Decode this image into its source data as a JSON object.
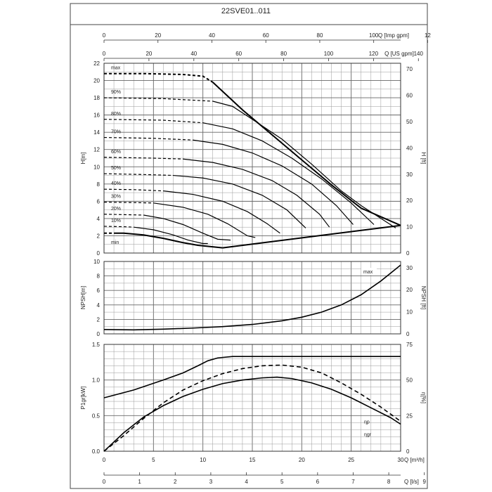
{
  "title": "22SVE01..011",
  "colors": {
    "grid": "#9a9a9a",
    "curve": "#000000",
    "frame": "#444444"
  },
  "chart_data": [
    {
      "id": "head",
      "type": "line",
      "xlabel": "",
      "ylabel": "H[m]",
      "ylabel_right": "H [ft]",
      "top_axis_1": {
        "label": "Q [Imp gpm]",
        "ticks": [
          "0",
          "20",
          "40",
          "60",
          "80",
          "100",
          "12"
        ]
      },
      "top_axis_2": {
        "label": "Q [US gpm]",
        "ticks": [
          "0",
          "20",
          "40",
          "60",
          "80",
          "100",
          "120",
          "140"
        ]
      },
      "xlim": [
        0,
        30
      ],
      "ylim": [
        0,
        22
      ],
      "y_ticks": [
        "0",
        "2",
        "4",
        "6",
        "8",
        "10",
        "12",
        "14",
        "16",
        "18",
        "20",
        "22"
      ],
      "y_right_ticks": [
        "0",
        "10",
        "20",
        "30",
        "40",
        "50",
        "60",
        "70"
      ],
      "grid": true,
      "speed_labels": [
        "max",
        "90%",
        "80%",
        "70%",
        "60%",
        "50%",
        "40%",
        "30%",
        "20%",
        "10%",
        "min"
      ],
      "series": [
        {
          "name": "max",
          "dashed_to": 11,
          "points": [
            [
              0,
              20.8
            ],
            [
              4,
              20.8
            ],
            [
              8,
              20.7
            ],
            [
              10,
              20.5
            ],
            [
              11,
              19.8
            ],
            [
              12.5,
              18.2
            ],
            [
              14,
              16.6
            ],
            [
              17,
              13.7
            ],
            [
              20,
              10.8
            ],
            [
              23,
              7.9
            ],
            [
              26,
              5.2
            ],
            [
              30,
              3.2
            ]
          ]
        },
        {
          "name": "90%",
          "dashed_to": 11,
          "points": [
            [
              0,
              18
            ],
            [
              6,
              17.9
            ],
            [
              11,
              17.6
            ],
            [
              13,
              17
            ],
            [
              15,
              15.5
            ],
            [
              18,
              13.2
            ],
            [
              21,
              10.3
            ],
            [
              24,
              7.2
            ],
            [
              26,
              5.5
            ],
            [
              29.5,
              2.9
            ]
          ]
        },
        {
          "name": "80%",
          "dashed_to": 10,
          "points": [
            [
              0,
              15.5
            ],
            [
              6,
              15.4
            ],
            [
              10,
              15.1
            ],
            [
              13,
              14.4
            ],
            [
              16,
              13
            ],
            [
              19,
              11
            ],
            [
              22,
              8.6
            ],
            [
              25,
              5.8
            ],
            [
              27.3,
              3.3
            ]
          ]
        },
        {
          "name": "70%",
          "dashed_to": 9,
          "points": [
            [
              0,
              13.4
            ],
            [
              5,
              13.3
            ],
            [
              9,
              13.1
            ],
            [
              12,
              12.6
            ],
            [
              15,
              11.6
            ],
            [
              18,
              10.1
            ],
            [
              21,
              8
            ],
            [
              23.5,
              5.5
            ],
            [
              25.2,
              3.3
            ]
          ]
        },
        {
          "name": "60%",
          "dashed_to": 8,
          "points": [
            [
              0,
              11.1
            ],
            [
              5,
              11
            ],
            [
              8,
              10.9
            ],
            [
              11,
              10.5
            ],
            [
              14,
              9.7
            ],
            [
              17,
              8.4
            ],
            [
              19.5,
              6.7
            ],
            [
              21.8,
              4.5
            ],
            [
              22.8,
              3
            ]
          ]
        },
        {
          "name": "50%",
          "dashed_to": 7,
          "points": [
            [
              0,
              9.2
            ],
            [
              4,
              9.1
            ],
            [
              7,
              9
            ],
            [
              10,
              8.7
            ],
            [
              13,
              8
            ],
            [
              16,
              6.7
            ],
            [
              18.5,
              5
            ],
            [
              20.4,
              2.9
            ]
          ]
        },
        {
          "name": "40%",
          "dashed_to": 6,
          "points": [
            [
              0,
              7.4
            ],
            [
              3,
              7.35
            ],
            [
              6,
              7.2
            ],
            [
              9,
              6.8
            ],
            [
              12,
              6
            ],
            [
              14.5,
              4.8
            ],
            [
              16.5,
              3.4
            ],
            [
              17.8,
              2.3
            ]
          ]
        },
        {
          "name": "30%",
          "dashed_to": 5,
          "points": [
            [
              0,
              5.9
            ],
            [
              3,
              5.85
            ],
            [
              5,
              5.8
            ],
            [
              8,
              5.3
            ],
            [
              10.5,
              4.5
            ],
            [
              12.5,
              3.4
            ],
            [
              14.5,
              2
            ],
            [
              15.3,
              1.8
            ]
          ]
        },
        {
          "name": "20%",
          "dashed_to": 4,
          "points": [
            [
              0,
              4.5
            ],
            [
              2,
              4.45
            ],
            [
              4,
              4.4
            ],
            [
              6,
              4
            ],
            [
              8,
              3.3
            ],
            [
              10,
              2.3
            ],
            [
              11.5,
              1.6
            ],
            [
              12.8,
              1.5
            ]
          ]
        },
        {
          "name": "10%",
          "dashed_to": 3,
          "points": [
            [
              0,
              3.1
            ],
            [
              2,
              3.05
            ],
            [
              3,
              3
            ],
            [
              5,
              2.7
            ],
            [
              7,
              2.1
            ],
            [
              8.5,
              1.5
            ],
            [
              10,
              1.1
            ],
            [
              10.5,
              1.1
            ]
          ]
        },
        {
          "name": "min",
          "dashed_to": 1,
          "points": [
            [
              0,
              2.3
            ],
            [
              1,
              2.3
            ],
            [
              2,
              2.3
            ],
            [
              4,
              2.1
            ],
            [
              6,
              1.7
            ],
            [
              8,
              1.2
            ],
            [
              9.5,
              0.9
            ],
            [
              12,
              0.6
            ]
          ]
        },
        {
          "name": "min-flow-boundary",
          "dashed_to": 0,
          "points": [
            [
              12,
              0.6
            ],
            [
              30,
              3.2
            ]
          ]
        }
      ]
    },
    {
      "id": "npsh",
      "type": "line",
      "ylabel": "NPSH[m]",
      "ylabel_right": "NPSH [ft]",
      "xlim": [
        0,
        30
      ],
      "ylim": [
        0,
        10
      ],
      "y_ticks": [
        "0",
        "2",
        "4",
        "6",
        "8",
        "10"
      ],
      "y_right_ticks": [
        "0",
        "10",
        "20",
        "30"
      ],
      "grid": true,
      "annotation": "max",
      "series": [
        {
          "name": "max",
          "points": [
            [
              0,
              0.6
            ],
            [
              3,
              0.55
            ],
            [
              6,
              0.65
            ],
            [
              9,
              0.8
            ],
            [
              12,
              1
            ],
            [
              15,
              1.3
            ],
            [
              18,
              1.8
            ],
            [
              20,
              2.3
            ],
            [
              22,
              3
            ],
            [
              24,
              4
            ],
            [
              26,
              5.4
            ],
            [
              28,
              7.3
            ],
            [
              30,
              9.5
            ]
          ]
        }
      ]
    },
    {
      "id": "power",
      "type": "line",
      "ylabel": "P1gr[kW]",
      "ylabel_right": "η[%]",
      "xlim": [
        0,
        30
      ],
      "ylim": [
        0,
        1.5
      ],
      "y_ticks": [
        "0.0",
        "0.5",
        "1.0",
        "1.5"
      ],
      "y_right_ticks": [
        "0",
        "25",
        "50",
        "75"
      ],
      "x_ticks": [
        "0",
        "5",
        "10",
        "15",
        "20",
        "25",
        "30"
      ],
      "x_label": "Q [m³/h]",
      "x2_ticks": [
        "0",
        "1",
        "2",
        "3",
        "4",
        "5",
        "6",
        "7",
        "8",
        "9"
      ],
      "x2_label": "Q [l/s]",
      "grid": true,
      "annotations": [
        "ηp",
        "ηgr"
      ],
      "series": [
        {
          "name": "P1gr",
          "dashed": false,
          "points": [
            [
              0,
              0.75
            ],
            [
              3,
              0.86
            ],
            [
              6,
              1.0
            ],
            [
              8,
              1.1
            ],
            [
              9.5,
              1.2
            ],
            [
              10.5,
              1.27
            ],
            [
              11.5,
              1.31
            ],
            [
              13,
              1.33
            ],
            [
              30,
              1.33
            ]
          ]
        },
        {
          "name": "ηp",
          "dashed": true,
          "points": [
            [
              0,
              0
            ],
            [
              2,
              0.22
            ],
            [
              4,
              0.46
            ],
            [
              6,
              0.68
            ],
            [
              8,
              0.86
            ],
            [
              10,
              0.99
            ],
            [
              12,
              1.09
            ],
            [
              14,
              1.16
            ],
            [
              16,
              1.2
            ],
            [
              18,
              1.21
            ],
            [
              20,
              1.18
            ],
            [
              22,
              1.1
            ],
            [
              24,
              0.96
            ],
            [
              26,
              0.8
            ],
            [
              28,
              0.62
            ],
            [
              30,
              0.42
            ]
          ]
        },
        {
          "name": "ηgr",
          "dashed": false,
          "points": [
            [
              0,
              0
            ],
            [
              2,
              0.26
            ],
            [
              4,
              0.48
            ],
            [
              6,
              0.64
            ],
            [
              8,
              0.77
            ],
            [
              10,
              0.87
            ],
            [
              12,
              0.95
            ],
            [
              14,
              1.0
            ],
            [
              16,
              1.03
            ],
            [
              17.5,
              1.04
            ],
            [
              19,
              1.02
            ],
            [
              21,
              0.96
            ],
            [
              23,
              0.87
            ],
            [
              25,
              0.75
            ],
            [
              27,
              0.61
            ],
            [
              29,
              0.47
            ],
            [
              30,
              0.38
            ]
          ]
        }
      ]
    }
  ]
}
